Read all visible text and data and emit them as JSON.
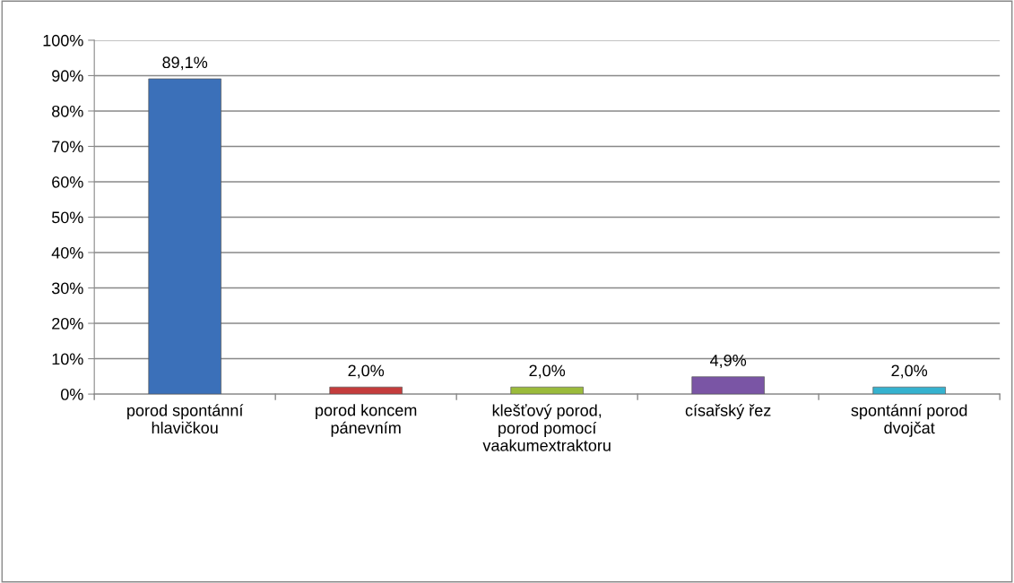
{
  "chart_data": {
    "type": "bar",
    "categories": [
      "porod spontánní\nhlavičkou",
      "porod koncem\npánevním",
      "klešťový porod,\nporod pomocí\nvaakumextraktoru",
      "císařský řez",
      "spontánní porod\ndvojčat"
    ],
    "values": [
      89.1,
      2.0,
      2.0,
      4.9,
      2.0
    ],
    "colors": [
      "#3b70b9",
      "#c43c3c",
      "#9bbb3b",
      "#7a55a5",
      "#35b2cf"
    ],
    "value_labels": [
      "89,1%",
      "2,0%",
      "2,0%",
      "4,9%",
      "2,0%"
    ],
    "ylim": [
      0,
      100
    ],
    "yticks": [
      {
        "value": 0,
        "label": "0%"
      },
      {
        "value": 10,
        "label": "10%"
      },
      {
        "value": 20,
        "label": "20%"
      },
      {
        "value": 30,
        "label": "30%"
      },
      {
        "value": 40,
        "label": "40%"
      },
      {
        "value": 50,
        "label": "50%"
      },
      {
        "value": 60,
        "label": "60%"
      },
      {
        "value": 70,
        "label": "70%"
      },
      {
        "value": 80,
        "label": "80%"
      },
      {
        "value": 90,
        "label": "90%"
      },
      {
        "value": 100,
        "label": "100%"
      }
    ],
    "grid": "y"
  }
}
